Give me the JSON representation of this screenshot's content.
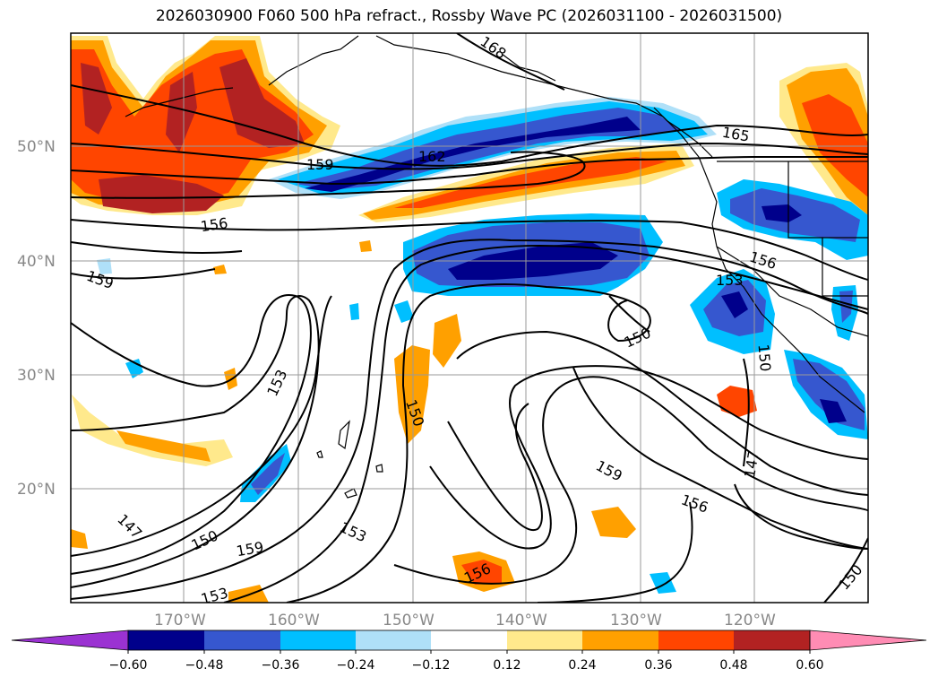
{
  "title": "2026030900 F060 500 hPa refract., Rossby Wave PC (2026031100 - 2026031500)",
  "map": {
    "lat_ticks": [
      "50°N",
      "40°N",
      "30°N",
      "20°N"
    ],
    "lon_ticks": [
      "170°W",
      "160°W",
      "150°W",
      "140°W",
      "130°W",
      "120°W"
    ],
    "contour_labels": [
      "168",
      "165",
      "162",
      "159",
      "159",
      "156",
      "156",
      "153",
      "150",
      "150",
      "153",
      "150",
      "147",
      "159",
      "156",
      "147",
      "150",
      "159",
      "153",
      "156",
      "153",
      "150"
    ]
  },
  "colorbar": {
    "colors": [
      "#9b32d2",
      "#00008b",
      "#3657cf",
      "#00bfff",
      "#afe0f8",
      "#ffffff",
      "#ffe98c",
      "#ffa000",
      "#ff4500",
      "#b22222",
      "#ff8cb4"
    ],
    "tick_labels": [
      "−0.60",
      "−0.48",
      "−0.36",
      "−0.24",
      "−0.12",
      "0.12",
      "0.24",
      "0.36",
      "0.48",
      "0.60"
    ]
  }
}
